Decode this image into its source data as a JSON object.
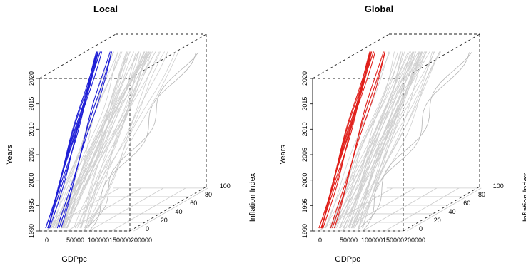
{
  "chart_data": [
    {
      "type": "line",
      "title": "Local",
      "xlabel": "GDPpc",
      "ylabel": "Years",
      "zlabel": "Inflation Index",
      "x_ticks": [
        "0",
        "50000",
        "100000",
        "150000",
        "200000"
      ],
      "y_ticks": [
        "1990",
        "1995",
        "2000",
        "2005",
        "2010",
        "2015",
        "2020"
      ],
      "z_ticks": [
        "0",
        "20",
        "40",
        "60",
        "80",
        "100"
      ],
      "xlim": [
        0,
        200000
      ],
      "ylim": [
        1990,
        2020
      ],
      "zlim": [
        0,
        100
      ],
      "highlight_color": "#1f1fd6",
      "background_color": "#cfcfcf",
      "series": [
        {
          "role": "highlighted",
          "count": 12
        },
        {
          "role": "other",
          "count": 40
        }
      ]
    },
    {
      "type": "line",
      "title": "Global",
      "xlabel": "GDPpc",
      "ylabel": "Years",
      "zlabel": "Inflation Index",
      "x_ticks": [
        "0",
        "50000",
        "100000",
        "150000",
        "200000"
      ],
      "y_ticks": [
        "1990",
        "1995",
        "2000",
        "2005",
        "2010",
        "2015",
        "2020"
      ],
      "z_ticks": [
        "0",
        "20",
        "40",
        "60",
        "80",
        "100"
      ],
      "xlim": [
        0,
        200000
      ],
      "ylim": [
        1990,
        2020
      ],
      "zlim": [
        0,
        100
      ],
      "highlight_color": "#e0201b",
      "background_color": "#cfcfcf",
      "series": [
        {
          "role": "highlighted",
          "count": 12
        },
        {
          "role": "other",
          "count": 40
        }
      ]
    }
  ]
}
